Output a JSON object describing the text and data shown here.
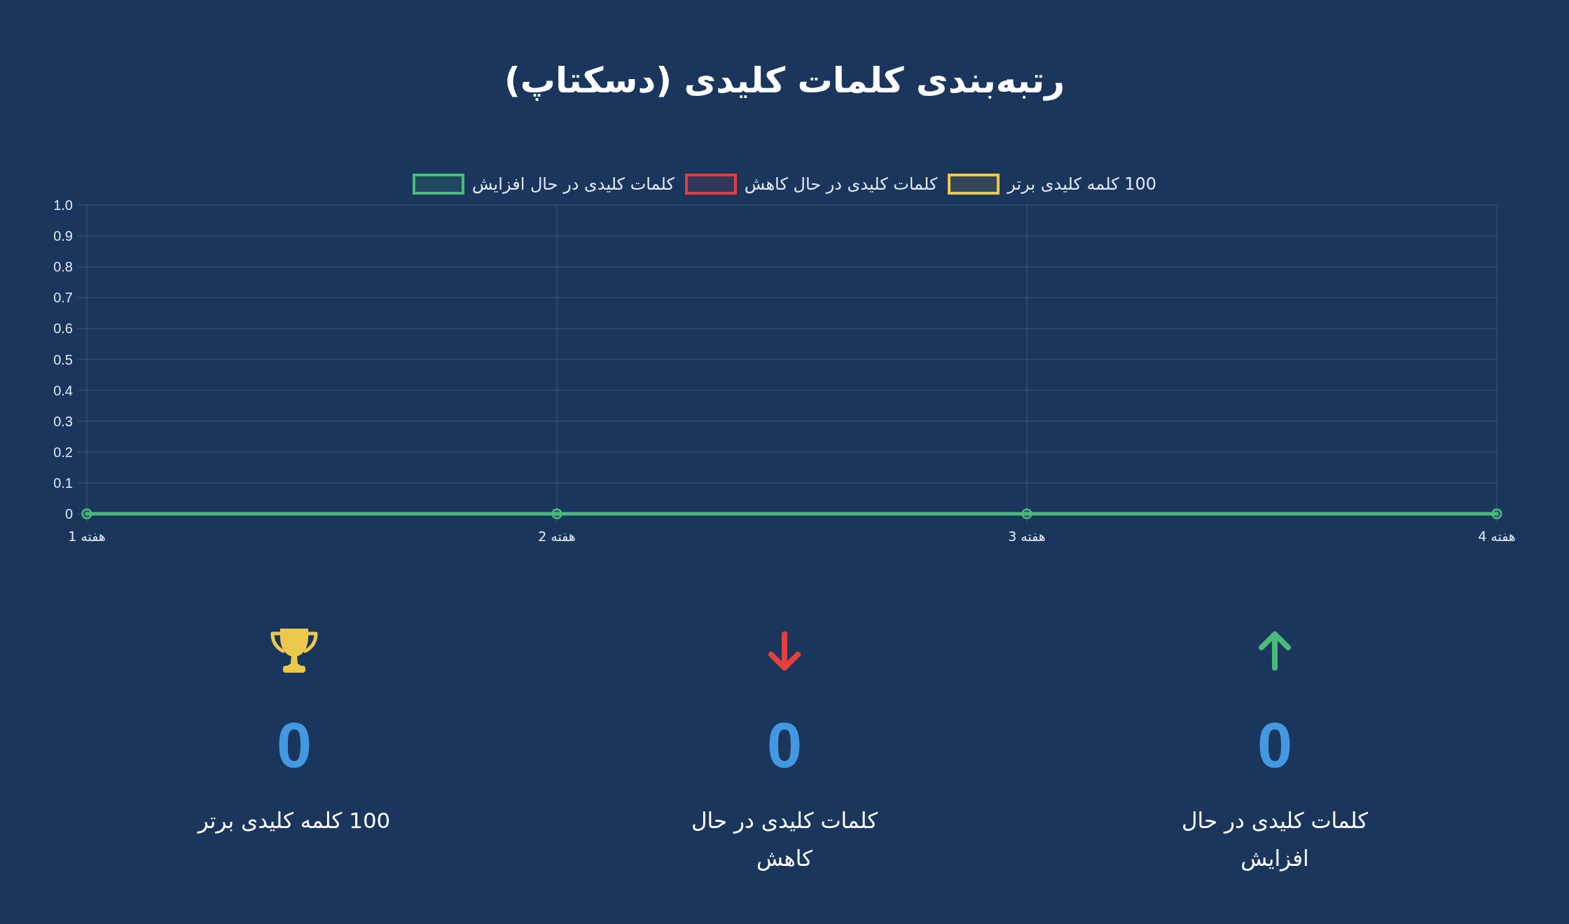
{
  "chart_data": [
    {
      "type": "line",
      "title": "رتبه‌بندی کلمات کلیدی (دسکتاپ)",
      "categories": [
        "هفته 1",
        "هفته 2",
        "هفته 3",
        "هفته 4"
      ],
      "series": [
        {
          "name": "کلمات کلیدی در حال افزایش",
          "color": "#48bb78",
          "values": [
            0,
            0,
            0,
            0
          ]
        },
        {
          "name": "کلمات کلیدی در حال کاهش",
          "color": "#e53e3e",
          "values": [
            null,
            null,
            null,
            null
          ]
        },
        {
          "name": "100 کلمه کلیدی برتر",
          "color": "#ecc94b",
          "values": [
            null,
            null,
            null,
            null
          ]
        }
      ],
      "ylim": [
        0,
        1
      ],
      "yticks": [
        0,
        0.1,
        0.2,
        0.3,
        0.4,
        0.5,
        0.6,
        0.7,
        0.8,
        0.9,
        {
          "value": 1,
          "label": "1.0"
        }
      ],
      "grid": true,
      "legend": "top",
      "marker": "circle"
    },
    {
      "type": "other",
      "categories": [
        "100 کلمه کلیدی برتر",
        "کلمات کلیدی در حال کاهش",
        "کلمات کلیدی در حال افزایش"
      ],
      "values": [
        0,
        0,
        0
      ],
      "color": "#4299e1",
      "data_labels": true
    }
  ]
}
